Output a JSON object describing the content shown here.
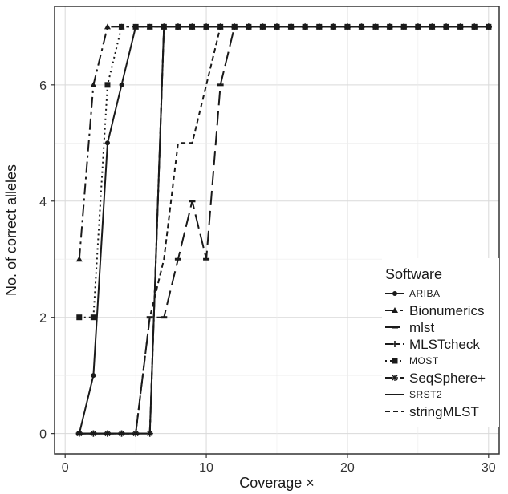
{
  "chart_data": {
    "type": "line",
    "xlabel": "Coverage ×",
    "ylabel": "No. of correct alleles",
    "xlim": [
      0,
      30
    ],
    "ylim": [
      0,
      7
    ],
    "x_ticks": [
      0,
      10,
      20,
      30
    ],
    "y_ticks": [
      0,
      2,
      4,
      6
    ],
    "grid": true,
    "legend_position": "right",
    "legend_title": "Software",
    "colors": {
      "line": "#1a1a1a",
      "grid": "#d9d9d9",
      "frame": "#333333"
    },
    "series": [
      {
        "name": "ARIBA",
        "marker": "dot",
        "dash": "solid",
        "x": [
          1,
          2,
          3,
          4,
          5,
          6,
          7,
          8,
          9,
          10,
          11,
          12,
          13,
          14,
          15,
          16,
          17,
          18,
          19,
          20,
          21,
          22,
          23,
          24,
          25,
          26,
          27,
          28,
          29,
          30
        ],
        "y": [
          0,
          1,
          5,
          6,
          7,
          7,
          7,
          7,
          7,
          7,
          7,
          7,
          7,
          7,
          7,
          7,
          7,
          7,
          7,
          7,
          7,
          7,
          7,
          7,
          7,
          7,
          7,
          7,
          7,
          7
        ]
      },
      {
        "name": "Bionumerics",
        "marker": "triangle",
        "dash": "longdashdot",
        "x": [
          1,
          2,
          3,
          4,
          5,
          6,
          7,
          8,
          9,
          10,
          11,
          12,
          13,
          14,
          15,
          16,
          17,
          18,
          19,
          20,
          21,
          22,
          23,
          24,
          25,
          26,
          27,
          28,
          29,
          30
        ],
        "y": [
          3,
          6,
          7,
          7,
          7,
          7,
          7,
          7,
          7,
          7,
          7,
          7,
          7,
          7,
          7,
          7,
          7,
          7,
          7,
          7,
          7,
          7,
          7,
          7,
          7,
          7,
          7,
          7,
          7,
          7
        ]
      },
      {
        "name": "mlst",
        "marker": "dash",
        "dash": "longdash",
        "x": [
          1,
          2,
          3,
          4,
          5,
          6,
          7,
          8,
          9,
          10,
          11,
          12,
          13,
          14,
          15,
          16,
          17,
          18,
          19,
          20,
          21,
          22,
          23,
          24,
          25,
          26,
          27,
          28,
          29,
          30
        ],
        "y": [
          0,
          0,
          0,
          0,
          0,
          2,
          2,
          3,
          4,
          3,
          6,
          7,
          7,
          7,
          7,
          7,
          7,
          7,
          7,
          7,
          7,
          7,
          7,
          7,
          7,
          7,
          7,
          7,
          7,
          7
        ]
      },
      {
        "name": "MLSTcheck",
        "marker": "plus",
        "dash": "twodash",
        "x": [
          1,
          2,
          3,
          4,
          5,
          6,
          7,
          8,
          9,
          10,
          11,
          12,
          13,
          14,
          15,
          16,
          17,
          18,
          19,
          20,
          21,
          22,
          23,
          24,
          25,
          26,
          27,
          28,
          29,
          30
        ],
        "y": [
          0,
          0,
          0,
          0,
          0,
          0,
          7,
          7,
          7,
          7,
          7,
          7,
          7,
          7,
          7,
          7,
          7,
          7,
          7,
          7,
          7,
          7,
          7,
          7,
          7,
          7,
          7,
          7,
          7,
          7
        ]
      },
      {
        "name": "MOST",
        "marker": "square",
        "dash": "dotted",
        "x": [
          1,
          2,
          3,
          4,
          5,
          6,
          7,
          8,
          9,
          10,
          11,
          12,
          13,
          14,
          15,
          16,
          17,
          18,
          19,
          20,
          21,
          22,
          23,
          24,
          25,
          26,
          27,
          28,
          29,
          30
        ],
        "y": [
          2,
          2,
          6,
          7,
          7,
          7,
          7,
          7,
          7,
          7,
          7,
          7,
          7,
          7,
          7,
          7,
          7,
          7,
          7,
          7,
          7,
          7,
          7,
          7,
          7,
          7,
          7,
          7,
          7,
          7
        ]
      },
      {
        "name": "SeqSphere+",
        "marker": "asterisk",
        "dash": "dashdot",
        "x": [
          1,
          2,
          3,
          4,
          5,
          6,
          7,
          8,
          9,
          10,
          11,
          12,
          13,
          14,
          15,
          16,
          17,
          18,
          19,
          20,
          21,
          22,
          23,
          24,
          25,
          26,
          27,
          28,
          29,
          30
        ],
        "y": [
          0,
          0,
          0,
          0,
          0,
          0,
          7,
          7,
          7,
          7,
          7,
          7,
          7,
          7,
          7,
          7,
          7,
          7,
          7,
          7,
          7,
          7,
          7,
          7,
          7,
          7,
          7,
          7,
          7,
          7
        ]
      },
      {
        "name": "SRST2",
        "marker": "none",
        "dash": "solid",
        "x": [
          1,
          2,
          3,
          4,
          5,
          6,
          7,
          8,
          9,
          10,
          11,
          12,
          13,
          14,
          15,
          16,
          17,
          18,
          19,
          20,
          21,
          22,
          23,
          24,
          25,
          26,
          27,
          28,
          29,
          30
        ],
        "y": [
          0,
          0,
          0,
          0,
          0,
          0,
          7,
          7,
          7,
          7,
          7,
          7,
          7,
          7,
          7,
          7,
          7,
          7,
          7,
          7,
          7,
          7,
          7,
          7,
          7,
          7,
          7,
          7,
          7,
          7
        ]
      },
      {
        "name": "stringMLST",
        "marker": "none",
        "dash": "dashed",
        "x": [
          1,
          2,
          3,
          4,
          5,
          6,
          7,
          8,
          9,
          10,
          11,
          12,
          13,
          14,
          15,
          16,
          17,
          18,
          19,
          20,
          21,
          22,
          23,
          24,
          25,
          26,
          27,
          28,
          29,
          30
        ],
        "y": [
          0,
          0,
          0,
          0,
          0,
          2,
          3,
          5,
          5,
          6,
          7,
          7,
          7,
          7,
          7,
          7,
          7,
          7,
          7,
          7,
          7,
          7,
          7,
          7,
          7,
          7,
          7,
          7,
          7,
          7
        ]
      }
    ]
  }
}
